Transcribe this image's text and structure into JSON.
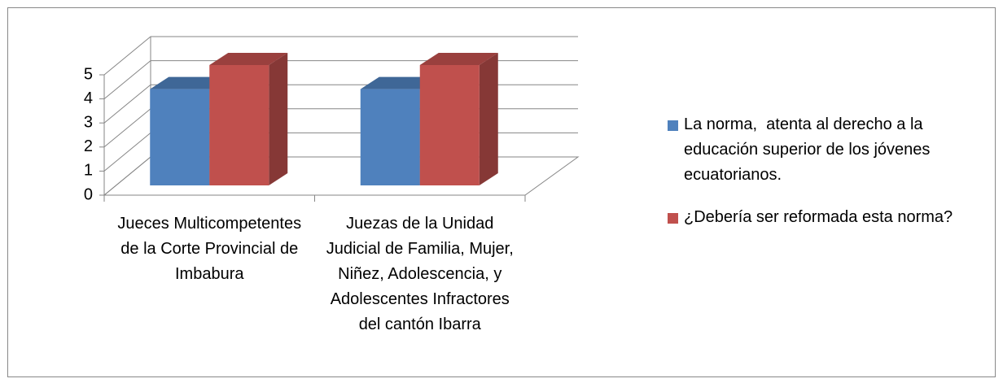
{
  "chart_data": {
    "type": "bar3d",
    "categories": [
      "Jueces Multicompetentes de la Corte Provincial de Imbabura",
      "Juezas de la Unidad Judicial de Familia, Mujer, Niñez, Adolescencia, y Adolescentes Infractores del cantón Ibarra"
    ],
    "series": [
      {
        "name": "La norma,  atenta al derecho a la educación superior de los jóvenes ecuatorianos.",
        "color": "#4f81bd",
        "values": [
          4,
          4
        ]
      },
      {
        "name": "¿Debería ser reformada esta norma?",
        "color": "#c0504d",
        "values": [
          5,
          5
        ]
      }
    ],
    "ylim": [
      0,
      5
    ],
    "yticks": [
      0,
      1,
      2,
      3,
      4,
      5
    ],
    "grid": true,
    "legend": "right"
  }
}
